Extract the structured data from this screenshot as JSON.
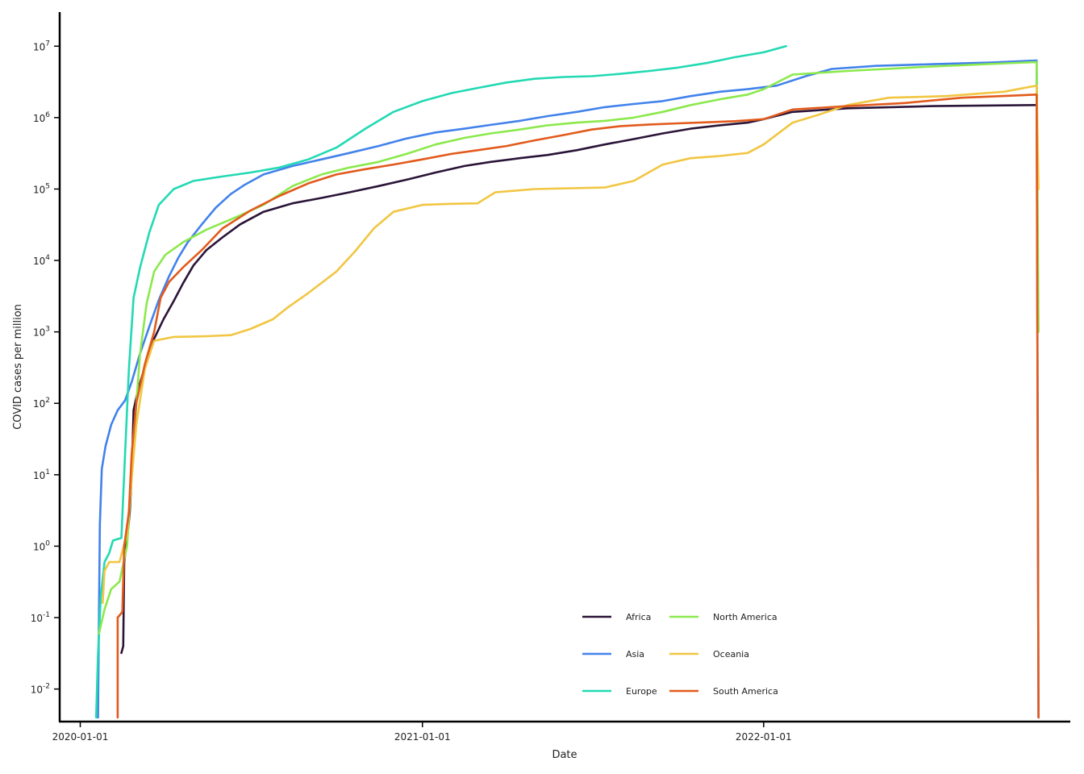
{
  "chart_data": {
    "type": "line",
    "xlabel": "Date",
    "ylabel": "COVID cases per million",
    "x_scale": "date",
    "y_scale": "log10",
    "x_ticks": [
      "2020-01-01",
      "2021-01-01",
      "2022-01-01"
    ],
    "y_ticks": [
      {
        "value": 0.01,
        "base": "10",
        "exp": "-2"
      },
      {
        "value": 0.1,
        "base": "10",
        "exp": "-1"
      },
      {
        "value": 1,
        "base": "10",
        "exp": "0"
      },
      {
        "value": 10,
        "base": "10",
        "exp": "1"
      },
      {
        "value": 100,
        "base": "10",
        "exp": "2"
      },
      {
        "value": 1000,
        "base": "10",
        "exp": "3"
      },
      {
        "value": 10000,
        "base": "10",
        "exp": "4"
      },
      {
        "value": 100000,
        "base": "10",
        "exp": "5"
      },
      {
        "value": 1000000,
        "base": "10",
        "exp": "6"
      },
      {
        "value": 10000000,
        "base": "10",
        "exp": "7"
      }
    ],
    "xlim": [
      "2019-12-10",
      "2022-11-25"
    ],
    "ylim": [
      0.0035,
      30000000
    ],
    "grid": false,
    "legend": {
      "position": "bottom-center",
      "columns": 2
    },
    "series": [
      {
        "name": "Africa",
        "color": "#2a1437",
        "points": [
          [
            "2020-02-14",
            0.032
          ],
          [
            "2020-02-16",
            0.04
          ],
          [
            "2020-02-17",
            0.6
          ],
          [
            "2020-02-20",
            1.2
          ],
          [
            "2020-02-23",
            3
          ],
          [
            "2020-02-25",
            10
          ],
          [
            "2020-02-27",
            80
          ],
          [
            "2020-03-03",
            160
          ],
          [
            "2020-03-10",
            320
          ],
          [
            "2020-03-20",
            800
          ],
          [
            "2020-03-30",
            1500
          ],
          [
            "2020-04-10",
            2700
          ],
          [
            "2020-04-20",
            4800
          ],
          [
            "2020-05-01",
            8500
          ],
          [
            "2020-05-15",
            14000
          ],
          [
            "2020-06-01",
            21000
          ],
          [
            "2020-06-20",
            32000
          ],
          [
            "2020-07-15",
            48000
          ],
          [
            "2020-08-15",
            63000
          ],
          [
            "2020-09-15",
            75000
          ],
          [
            "2020-10-15",
            90000
          ],
          [
            "2020-11-15",
            110000
          ],
          [
            "2020-12-15",
            135000
          ],
          [
            "2021-01-15",
            170000
          ],
          [
            "2021-02-15",
            210000
          ],
          [
            "2021-03-15",
            240000
          ],
          [
            "2021-04-15",
            270000
          ],
          [
            "2021-05-15",
            300000
          ],
          [
            "2021-06-15",
            350000
          ],
          [
            "2021-07-15",
            420000
          ],
          [
            "2021-08-15",
            500000
          ],
          [
            "2021-09-15",
            600000
          ],
          [
            "2021-10-15",
            700000
          ],
          [
            "2021-11-15",
            780000
          ],
          [
            "2021-12-15",
            850000
          ],
          [
            "2022-01-01",
            950000
          ],
          [
            "2022-02-01",
            1200000
          ],
          [
            "2022-04-01",
            1350000
          ],
          [
            "2022-07-01",
            1450000
          ],
          [
            "2022-10-20",
            1500000
          ]
        ]
      },
      {
        "name": "Asia",
        "color": "#4282eb",
        "points": [
          [
            "2020-01-20",
            0.004
          ],
          [
            "2020-01-22",
            2
          ],
          [
            "2020-01-24",
            12
          ],
          [
            "2020-01-28",
            25
          ],
          [
            "2020-02-03",
            50
          ],
          [
            "2020-02-10",
            80
          ],
          [
            "2020-02-18",
            110
          ],
          [
            "2020-02-25",
            200
          ],
          [
            "2020-03-05",
            500
          ],
          [
            "2020-03-15",
            1200
          ],
          [
            "2020-03-25",
            2800
          ],
          [
            "2020-04-05",
            6000
          ],
          [
            "2020-04-15",
            11000
          ],
          [
            "2020-04-25",
            18000
          ],
          [
            "2020-05-10",
            32000
          ],
          [
            "2020-05-25",
            55000
          ],
          [
            "2020-06-10",
            85000
          ],
          [
            "2020-06-25",
            115000
          ],
          [
            "2020-07-15",
            160000
          ],
          [
            "2020-08-15",
            210000
          ],
          [
            "2020-09-15",
            260000
          ],
          [
            "2020-10-15",
            320000
          ],
          [
            "2020-11-15",
            400000
          ],
          [
            "2020-12-15",
            510000
          ],
          [
            "2021-01-15",
            620000
          ],
          [
            "2021-02-15",
            700000
          ],
          [
            "2021-03-15",
            790000
          ],
          [
            "2021-04-15",
            900000
          ],
          [
            "2021-05-15",
            1050000
          ],
          [
            "2021-06-15",
            1200000
          ],
          [
            "2021-07-15",
            1400000
          ],
          [
            "2021-08-15",
            1550000
          ],
          [
            "2021-09-15",
            1700000
          ],
          [
            "2021-10-15",
            2000000
          ],
          [
            "2021-11-15",
            2300000
          ],
          [
            "2021-12-15",
            2500000
          ],
          [
            "2022-01-15",
            2800000
          ],
          [
            "2022-02-15",
            3800000
          ],
          [
            "2022-03-15",
            4800000
          ],
          [
            "2022-05-01",
            5300000
          ],
          [
            "2022-07-01",
            5600000
          ],
          [
            "2022-09-01",
            5900000
          ],
          [
            "2022-10-20",
            6300000
          ],
          [
            "2022-10-22",
            0.004
          ]
        ]
      },
      {
        "name": "Europe",
        "color": "#22d9b3",
        "points": [
          [
            "2020-01-18",
            0.004
          ],
          [
            "2020-01-20",
            0.03
          ],
          [
            "2020-01-23",
            0.2
          ],
          [
            "2020-01-27",
            0.6
          ],
          [
            "2020-02-01",
            0.8
          ],
          [
            "2020-02-05",
            1.2
          ],
          [
            "2020-02-14",
            1.3
          ],
          [
            "2020-02-18",
            20
          ],
          [
            "2020-02-22",
            300
          ],
          [
            "2020-02-27",
            3000
          ],
          [
            "2020-03-05",
            8000
          ],
          [
            "2020-03-15",
            25000
          ],
          [
            "2020-03-25",
            60000
          ],
          [
            "2020-04-10",
            100000
          ],
          [
            "2020-05-01",
            130000
          ],
          [
            "2020-06-01",
            150000
          ],
          [
            "2020-07-01",
            170000
          ],
          [
            "2020-08-01",
            200000
          ],
          [
            "2020-09-01",
            260000
          ],
          [
            "2020-10-01",
            380000
          ],
          [
            "2020-11-01",
            700000
          ],
          [
            "2020-12-01",
            1200000
          ],
          [
            "2021-01-01",
            1700000
          ],
          [
            "2021-02-01",
            2200000
          ],
          [
            "2021-03-01",
            2600000
          ],
          [
            "2021-04-01",
            3100000
          ],
          [
            "2021-05-01",
            3500000
          ],
          [
            "2021-06-01",
            3700000
          ],
          [
            "2021-07-01",
            3800000
          ],
          [
            "2021-08-01",
            4100000
          ],
          [
            "2021-09-01",
            4500000
          ],
          [
            "2021-10-01",
            5000000
          ],
          [
            "2021-11-01",
            5800000
          ],
          [
            "2021-12-01",
            7000000
          ],
          [
            "2022-01-01",
            8200000
          ],
          [
            "2022-01-25",
            10000000
          ]
        ]
      },
      {
        "name": "North America",
        "color": "#8be94c",
        "points": [
          [
            "2020-01-21",
            0.06
          ],
          [
            "2020-01-27",
            0.13
          ],
          [
            "2020-02-03",
            0.25
          ],
          [
            "2020-02-12",
            0.32
          ],
          [
            "2020-02-20",
            1
          ],
          [
            "2020-02-25",
            10
          ],
          [
            "2020-03-01",
            100
          ],
          [
            "2020-03-05",
            500
          ],
          [
            "2020-03-12",
            2500
          ],
          [
            "2020-03-20",
            7000
          ],
          [
            "2020-04-01",
            12000
          ],
          [
            "2020-04-20",
            18000
          ],
          [
            "2020-05-15",
            27000
          ],
          [
            "2020-06-15",
            40000
          ],
          [
            "2020-07-15",
            60000
          ],
          [
            "2020-08-15",
            110000
          ],
          [
            "2020-09-15",
            160000
          ],
          [
            "2020-10-15",
            200000
          ],
          [
            "2020-11-15",
            240000
          ],
          [
            "2020-12-15",
            310000
          ],
          [
            "2021-01-15",
            420000
          ],
          [
            "2021-02-15",
            520000
          ],
          [
            "2021-03-15",
            600000
          ],
          [
            "2021-04-15",
            680000
          ],
          [
            "2021-05-15",
            780000
          ],
          [
            "2021-06-15",
            850000
          ],
          [
            "2021-07-15",
            900000
          ],
          [
            "2021-08-15",
            1000000
          ],
          [
            "2021-09-15",
            1200000
          ],
          [
            "2021-10-15",
            1500000
          ],
          [
            "2021-11-15",
            1800000
          ],
          [
            "2021-12-15",
            2100000
          ],
          [
            "2022-01-01",
            2500000
          ],
          [
            "2022-02-01",
            4000000
          ],
          [
            "2022-04-01",
            4500000
          ],
          [
            "2022-07-01",
            5200000
          ],
          [
            "2022-10-20",
            6000000
          ],
          [
            "2022-10-22",
            1000
          ]
        ]
      },
      {
        "name": "Oceania",
        "color": "#f1c642",
        "points": [
          [
            "2020-01-25",
            0.16
          ],
          [
            "2020-01-27",
            0.45
          ],
          [
            "2020-02-01",
            0.6
          ],
          [
            "2020-02-12",
            0.6
          ],
          [
            "2020-02-20",
            1.5
          ],
          [
            "2020-03-01",
            50
          ],
          [
            "2020-03-10",
            300
          ],
          [
            "2020-03-20",
            750
          ],
          [
            "2020-04-10",
            850
          ],
          [
            "2020-05-15",
            870
          ],
          [
            "2020-06-10",
            900
          ],
          [
            "2020-07-01",
            1100
          ],
          [
            "2020-07-25",
            1500
          ],
          [
            "2020-08-10",
            2200
          ],
          [
            "2020-09-01",
            3500
          ],
          [
            "2020-10-01",
            7000
          ],
          [
            "2020-10-20",
            13000
          ],
          [
            "2020-11-10",
            28000
          ],
          [
            "2020-12-01",
            48000
          ],
          [
            "2021-01-01",
            60000
          ],
          [
            "2021-02-01",
            62000
          ],
          [
            "2021-03-01",
            63000
          ],
          [
            "2021-03-20",
            90000
          ],
          [
            "2021-05-01",
            100000
          ],
          [
            "2021-07-15",
            105000
          ],
          [
            "2021-08-15",
            130000
          ],
          [
            "2021-09-15",
            220000
          ],
          [
            "2021-10-15",
            270000
          ],
          [
            "2021-11-15",
            290000
          ],
          [
            "2021-12-15",
            320000
          ],
          [
            "2022-01-01",
            420000
          ],
          [
            "2022-02-01",
            850000
          ],
          [
            "2022-03-01",
            1100000
          ],
          [
            "2022-04-01",
            1500000
          ],
          [
            "2022-05-15",
            1900000
          ],
          [
            "2022-07-15",
            2000000
          ],
          [
            "2022-09-15",
            2300000
          ],
          [
            "2022-10-20",
            2800000
          ],
          [
            "2022-10-22",
            100000
          ]
        ]
      },
      {
        "name": "South America",
        "color": "#e25a1c",
        "points": [
          [
            "2020-02-10",
            0.004
          ],
          [
            "2020-02-10",
            0.1
          ],
          [
            "2020-02-15",
            0.12
          ],
          [
            "2020-02-17",
            1
          ],
          [
            "2020-02-22",
            3
          ],
          [
            "2020-02-25",
            20
          ],
          [
            "2020-03-01",
            100
          ],
          [
            "2020-03-10",
            350
          ],
          [
            "2020-03-20",
            1000
          ],
          [
            "2020-03-27",
            3000
          ],
          [
            "2020-04-05",
            5000
          ],
          [
            "2020-04-20",
            8000
          ],
          [
            "2020-05-10",
            14000
          ],
          [
            "2020-06-01",
            28000
          ],
          [
            "2020-07-01",
            50000
          ],
          [
            "2020-08-01",
            80000
          ],
          [
            "2020-09-01",
            120000
          ],
          [
            "2020-10-01",
            160000
          ],
          [
            "2020-11-01",
            190000
          ],
          [
            "2020-12-01",
            220000
          ],
          [
            "2021-01-01",
            260000
          ],
          [
            "2021-02-01",
            310000
          ],
          [
            "2021-03-01",
            350000
          ],
          [
            "2021-04-01",
            400000
          ],
          [
            "2021-05-01",
            480000
          ],
          [
            "2021-06-01",
            570000
          ],
          [
            "2021-07-01",
            680000
          ],
          [
            "2021-08-01",
            760000
          ],
          [
            "2021-09-01",
            800000
          ],
          [
            "2021-10-01",
            830000
          ],
          [
            "2021-11-01",
            860000
          ],
          [
            "2021-12-01",
            890000
          ],
          [
            "2022-01-01",
            950000
          ],
          [
            "2022-02-01",
            1300000
          ],
          [
            "2022-04-01",
            1450000
          ],
          [
            "2022-06-01",
            1600000
          ],
          [
            "2022-08-01",
            1900000
          ],
          [
            "2022-10-20",
            2100000
          ],
          [
            "2022-10-22",
            0.004
          ]
        ]
      }
    ]
  }
}
